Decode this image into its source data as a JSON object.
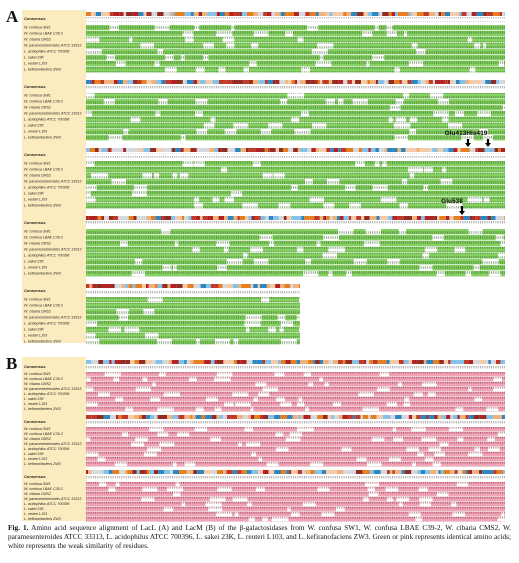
{
  "panels": [
    {
      "label": "A",
      "consensus_label": "Consensus",
      "species": [
        "W. confusa SW1",
        "W. confusa LBAE C39-2",
        "W. cibaria CMS2",
        "W. paramesenteroides ATCC 33313",
        "L. acidophilus ATCC 700396",
        "L. sakei 23K",
        "L. reuteri L103",
        "L. kefiranofaciens ZW3"
      ],
      "annotations": [
        "Glu413His419",
        "Glu538"
      ]
    },
    {
      "label": "B",
      "consensus_label": "Consensus",
      "species": [
        "W. confusa SW1",
        "W. confusa LBAE C39-2",
        "W. cibaria CMS2",
        "W. paramesenteroides ATCC 33313",
        "L. acidophilus ATCC 700396",
        "L. sakei 23K",
        "L. reuteri L103",
        "L. kefiranofaciens ZW3"
      ],
      "annotations": []
    }
  ],
  "caption": {
    "label": "Fig. 1.",
    "text": "Amino acid sequence alignment of LacL (A) and LacM (B) of the β-galactosidases from W. confusa SW1, W. confusa LBAE C39-2, W. cibaria CMS2, W. paramesenteroides ATCC 33313, L. acidophilus ATCC 700396, L. sakei 23K, L. reuteri L103, and L. kefiranofaciens ZW3. Green or pink represents identical amino acids; white represents the weak similarity of residues."
  }
}
